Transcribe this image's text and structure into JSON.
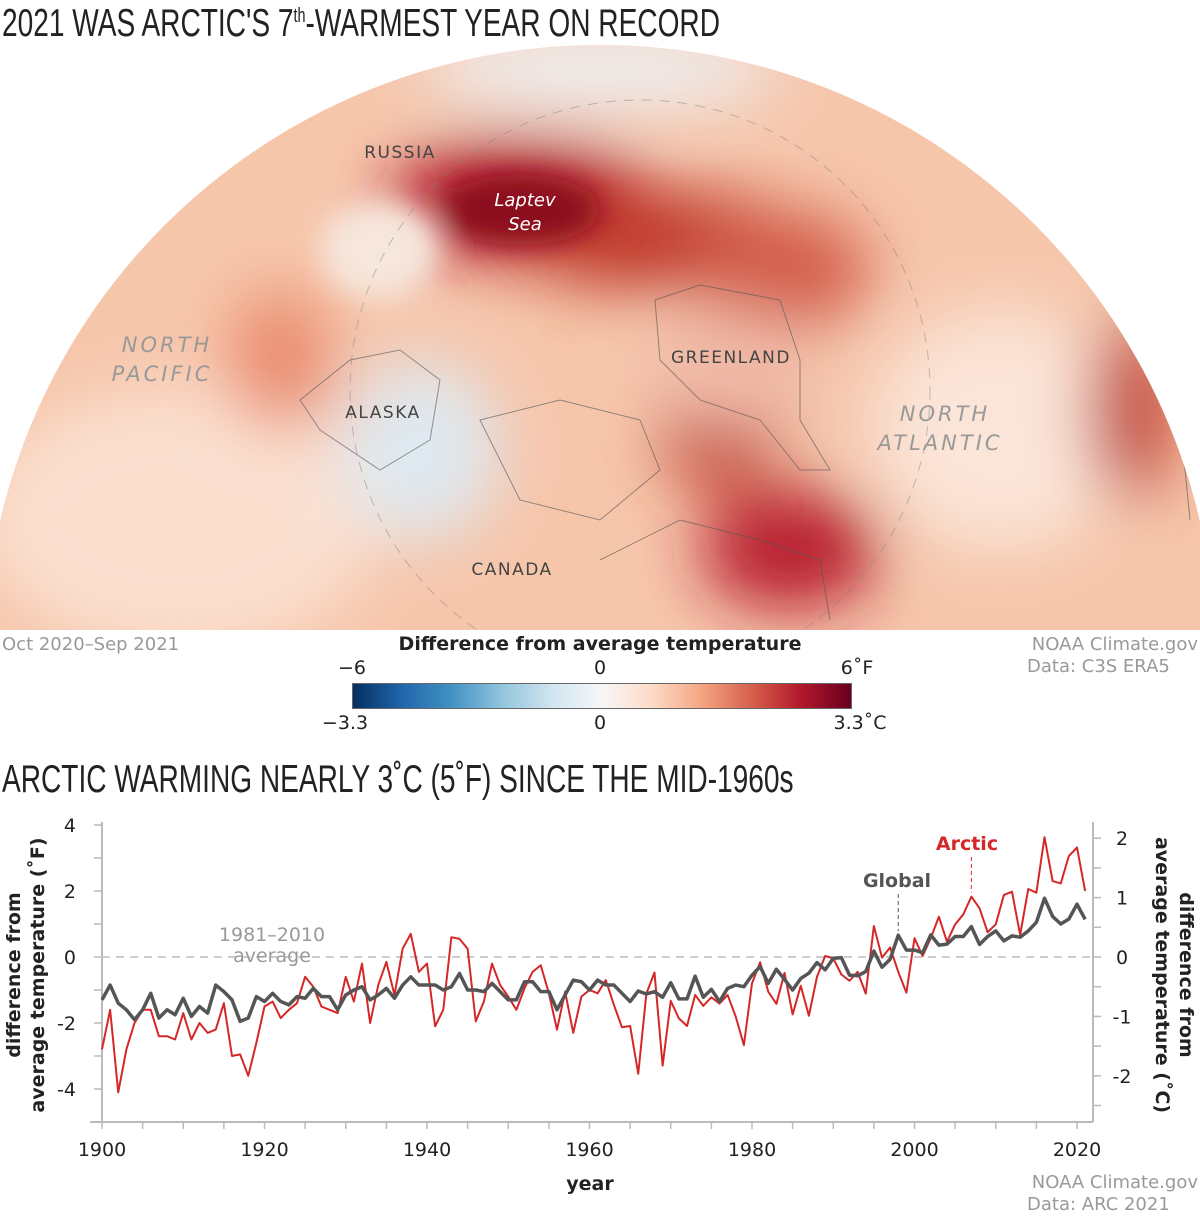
{
  "map": {
    "title": "2021 WAS ARCTIC'S 7",
    "title_sup": "th",
    "title_rest": "-WARMEST YEAR ON RECORD",
    "labels": {
      "russia": "RUSSIA",
      "laptev1": "Laptev",
      "laptev2": "Sea",
      "greenland": "GREENLAND",
      "alaska": "ALASKA",
      "canada": "CANADA",
      "np1": "NORTH",
      "np2": "PACIFIC",
      "na1": "NORTH",
      "na2": "ATLANTIC"
    },
    "period": "Oct 2020–Sep 2021",
    "credit1": "NOAA Climate.gov",
    "credit2": "Data: C3S ERA5",
    "legend": {
      "title": "Difference from average temperature",
      "f_min": "−6",
      "f_mid": "0",
      "f_max": "6˚F",
      "c_min": "−3.3",
      "c_mid": "0",
      "c_max": "3.3˚C",
      "colors": [
        "#053061",
        "#2166ac",
        "#92c5de",
        "#f7f7f7",
        "#f4a582",
        "#b2182b",
        "#67001f"
      ]
    }
  },
  "chart_title": "ARCTIC WARMING NEARLY 3˚C (5˚F) SINCE THE MID-1960s",
  "credit1": "NOAA Climate.gov",
  "credit2": "Data: ARC 2021",
  "chart_data": {
    "type": "line",
    "xlabel": "year",
    "ylabel_left": "difference from average temperature (˚F)",
    "ylabel_left_1": "difference from",
    "ylabel_left_2": "average temperature (˚F)",
    "ylabel_right_1": "difference from",
    "ylabel_right_2": "average temperature (˚C)",
    "xlim": [
      1900,
      2022
    ],
    "ylim": [
      -5,
      4
    ],
    "x_ticks": [
      1900,
      1920,
      1940,
      1960,
      1980,
      2000,
      2020
    ],
    "y_ticks_left": [
      4,
      2,
      0,
      -2,
      -4
    ],
    "y_ticks_right": [
      2,
      1,
      0,
      -1,
      -2
    ],
    "baseline_label_1": "1981–2010",
    "baseline_label_2": "average",
    "x_start": 1900,
    "series": [
      {
        "name": "Arctic",
        "color": "#d62728",
        "values": [
          -2.8,
          -1.6,
          -4.1,
          -2.8,
          -2.0,
          -1.6,
          -1.6,
          -2.4,
          -2.4,
          -2.5,
          -1.7,
          -2.5,
          -2.0,
          -2.3,
          -2.2,
          -1.4,
          -3.0,
          -2.95,
          -3.6,
          -2.6,
          -1.5,
          -1.35,
          -1.85,
          -1.6,
          -1.4,
          -0.6,
          -0.9,
          -1.5,
          -1.6,
          -1.7,
          -0.6,
          -1.35,
          -0.2,
          -2.0,
          -0.85,
          -0.15,
          -1.15,
          0.25,
          0.7,
          -0.45,
          -0.2,
          -2.1,
          -1.6,
          0.6,
          0.55,
          0.25,
          -1.95,
          -1.35,
          -0.2,
          -0.85,
          -1.2,
          -1.6,
          -0.95,
          -0.45,
          -0.25,
          -1.1,
          -2.2,
          -1.05,
          -2.3,
          -1.2,
          -1.0,
          -1.1,
          -0.7,
          -1.45,
          -2.13,
          -2.09,
          -3.54,
          -1.11,
          -0.47,
          -3.29,
          -1.33,
          -1.86,
          -2.09,
          -1.15,
          -1.48,
          -1.22,
          -1.41,
          -1.15,
          -1.81,
          -2.67,
          -0.8,
          -0.16,
          -1.05,
          -1.42,
          -0.48,
          -1.74,
          -0.87,
          -1.78,
          -0.6,
          0.03,
          -0.04,
          -0.53,
          -0.72,
          -0.45,
          -1.11,
          0.94,
          -0.02,
          0.29,
          -0.45,
          -1.08,
          0.57,
          0.03,
          0.57,
          1.22,
          0.46,
          0.99,
          1.29,
          1.83,
          1.48,
          0.75,
          0.99,
          1.88,
          1.98,
          0.67,
          2.06,
          1.95,
          3.63,
          2.3,
          2.23,
          3.06,
          3.32,
          2.0
        ]
      },
      {
        "name": "Global",
        "color": "#555555",
        "values": [
          -1.3,
          -0.85,
          -1.4,
          -1.6,
          -1.9,
          -1.6,
          -1.1,
          -1.85,
          -1.6,
          -1.75,
          -1.25,
          -1.8,
          -1.5,
          -1.7,
          -0.85,
          -1.05,
          -1.3,
          -1.95,
          -1.85,
          -1.2,
          -1.35,
          -1.1,
          -1.35,
          -1.45,
          -1.2,
          -1.25,
          -0.95,
          -1.2,
          -1.2,
          -1.6,
          -1.15,
          -1.0,
          -0.9,
          -1.3,
          -1.15,
          -0.95,
          -1.25,
          -0.85,
          -0.6,
          -0.85,
          -0.85,
          -0.85,
          -1.0,
          -0.9,
          -0.5,
          -1.0,
          -1.0,
          -1.05,
          -0.8,
          -1.05,
          -1.3,
          -1.3,
          -0.75,
          -0.75,
          -1.05,
          -1.05,
          -1.6,
          -1.15,
          -0.7,
          -0.75,
          -1.0,
          -0.7,
          -0.85,
          -0.85,
          -1.1,
          -1.35,
          -1.03,
          -1.12,
          -1.05,
          -1.22,
          -0.78,
          -1.27,
          -1.27,
          -0.58,
          -1.22,
          -0.98,
          -1.35,
          -0.95,
          -0.85,
          -0.9,
          -0.55,
          -0.29,
          -0.8,
          -0.37,
          -0.68,
          -1.0,
          -0.65,
          -0.49,
          -0.17,
          -0.39,
          -0.04,
          -0.02,
          -0.55,
          -0.57,
          -0.44,
          0.18,
          -0.31,
          -0.07,
          0.66,
          0.21,
          0.21,
          0.13,
          0.67,
          0.36,
          0.39,
          0.62,
          0.62,
          0.92,
          0.38,
          0.62,
          0.79,
          0.49,
          0.64,
          0.6,
          0.79,
          1.05,
          1.78,
          1.23,
          1.0,
          1.15,
          1.6,
          1.14
        ]
      }
    ],
    "annotations": [
      {
        "text": "Arctic",
        "year": 2007
      },
      {
        "text": "Global",
        "year": 1998
      }
    ]
  }
}
